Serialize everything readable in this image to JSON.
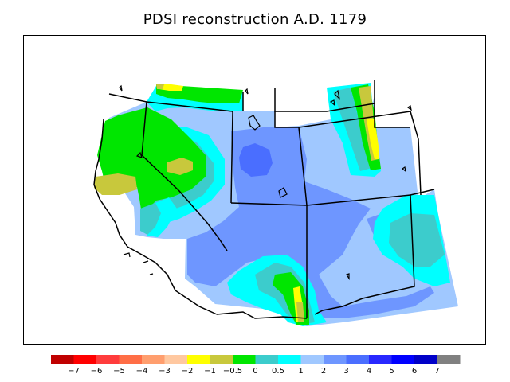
{
  "title": "PDSI reconstruction A.D. 1179",
  "colorbar": {
    "colors": [
      "#c00000",
      "#ff0000",
      "#ff3c3c",
      "#ff6e46",
      "#ff9e6e",
      "#ffc8a0",
      "#ffff00",
      "#c8c83c",
      "#00e600",
      "#3ccccc",
      "#00ffff",
      "#a0c8ff",
      "#6e96ff",
      "#4a6eff",
      "#2828ff",
      "#0000ff",
      "#0000c8",
      "#808080"
    ],
    "labels": [
      "−7",
      "−6",
      "−5",
      "−4",
      "−3",
      "−2",
      "−1",
      "−0.5",
      "0",
      "0.5",
      "1",
      "2",
      "3",
      "4",
      "5",
      "6",
      "7"
    ]
  }
}
